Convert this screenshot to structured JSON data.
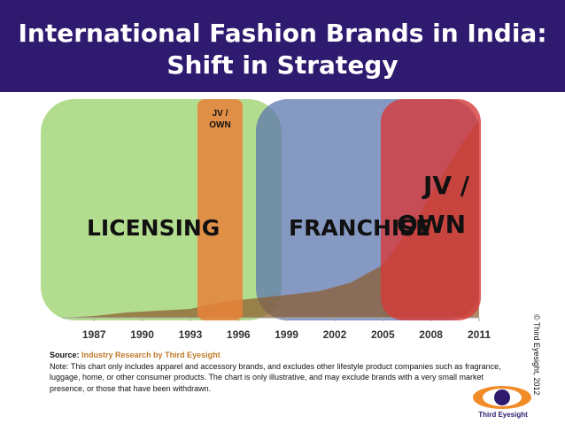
{
  "header": {
    "title_line1": "International Fashion Brands in India:",
    "title_line2": "Shift in Strategy"
  },
  "colors": {
    "header_bg": "#2e1a6e",
    "licensing": "#a6d77a",
    "jv_own": "#e8833a",
    "franchise": "#6b84b8",
    "jv_own_late": "#d64545",
    "brands_area": "#8b5a2b"
  },
  "phases": {
    "licensing": "LICENSING",
    "jv_own_early_line1": "JV /",
    "jv_own_early_line2": "OWN",
    "franchise": "FRANCHISE",
    "jv_own_late_line1": "JV /",
    "jv_own_late_line2": "OWN"
  },
  "chart_data": {
    "type": "area",
    "x": [
      1985,
      1987,
      1989,
      1991,
      1993,
      1995,
      1996,
      1997,
      1999,
      2001,
      2003,
      2005,
      2007,
      2008,
      2009,
      2010,
      2011
    ],
    "values": [
      0,
      1,
      3,
      4,
      5,
      9,
      10,
      11,
      13,
      15,
      20,
      30,
      55,
      70,
      85,
      100,
      112
    ],
    "xticks": [
      "1987",
      "1990",
      "1993",
      "1996",
      "1999",
      "2002",
      "2005",
      "2008",
      "2011"
    ],
    "xlim": [
      1985,
      2011
    ],
    "ylim": [
      0,
      120
    ],
    "grid": false
  },
  "notes": {
    "source_label": "Source:",
    "source_text": "Industry Research by Third Eyesight",
    "note": "Note: This chart only includes apparel and accessory brands, and excludes other lifestyle product companies such as fragrance, luggage, home, or other consumer products. The chart is only illustrative, and may exclude brands with a very small market presence, or those that have been withdrawn."
  },
  "copyright": "© Third Eyesight, 2012",
  "logo": {
    "icon": "eye-logo-icon",
    "text": "Third Eyesight"
  }
}
